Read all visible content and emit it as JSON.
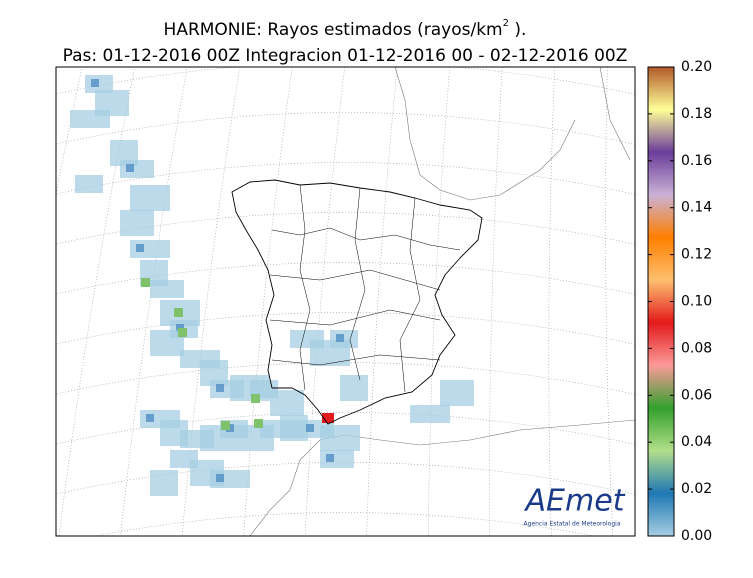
{
  "title": {
    "main": "HARMONIE: Rayos estimados  (rayos/km",
    "sup": "2",
    "end": " )."
  },
  "subtitle": "Pas: 01-12-2016 00Z Integracion 01-12-2016 00 - 02-12-2016 00Z",
  "colorbar": {
    "lim": [
      0,
      0.2
    ],
    "ticks": [
      {
        "value": 0,
        "label": "0.00"
      },
      {
        "value": 0.02,
        "label": "0.02"
      },
      {
        "value": 0.04,
        "label": "0.04"
      },
      {
        "value": 0.06,
        "label": "0.06"
      },
      {
        "value": 0.08,
        "label": "0.08"
      },
      {
        "value": 0.1,
        "label": "0.10"
      },
      {
        "value": 0.12,
        "label": "0.12"
      },
      {
        "value": 0.14,
        "label": "0.14"
      },
      {
        "value": 0.16,
        "label": "0.16"
      },
      {
        "value": 0.18,
        "label": "0.18"
      },
      {
        "value": 0.2,
        "label": "0.20"
      }
    ],
    "colors": [
      "#a6cee3",
      "#1f78b4",
      "#b2df8a",
      "#33a02c",
      "#fb9a99",
      "#e31a1c",
      "#fdbf6f",
      "#ff7f00",
      "#cab2d6",
      "#6a3d9a",
      "#ffff99",
      "#b15928"
    ]
  },
  "logo": {
    "name": "AEmet",
    "caption": "Agencia Estatal de Meteorologia"
  }
}
